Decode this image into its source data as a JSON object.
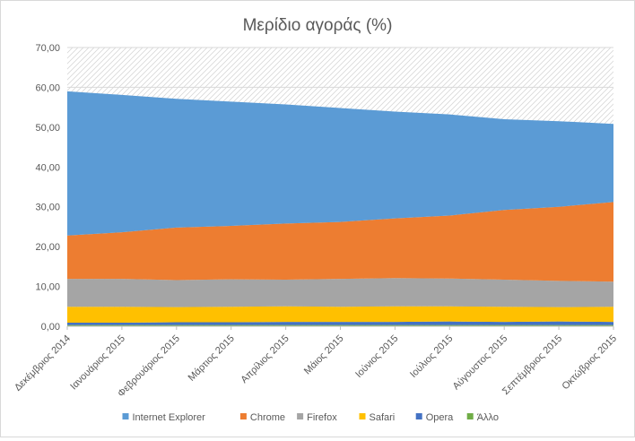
{
  "chart_data": {
    "type": "area",
    "stacked": true,
    "title": "Μερίδιο αγοράς (%)",
    "xlabel": "",
    "ylabel": "",
    "categories": [
      "Δεκέμβριος 2014",
      "Ιανουάριος 2015",
      "Φεβρουάριος 2015",
      "Μάρτιος 2015",
      "Απρίλιος 2015",
      "Μάιος 2015",
      "Ιούνιος 2015",
      "Ιούλιος 2015",
      "Αύγουστος 2015",
      "Σεπτέμβριος 2015",
      "Οκτώβριος 2015"
    ],
    "series": [
      {
        "name": "Άλλο",
        "color": "#70ad47",
        "values": [
          0.3,
          0.3,
          0.3,
          0.3,
          0.3,
          0.3,
          0.3,
          0.3,
          0.3,
          0.3,
          0.3
        ]
      },
      {
        "name": "Opera",
        "color": "#4472c4",
        "values": [
          0.6,
          0.6,
          0.7,
          0.7,
          0.8,
          0.8,
          0.8,
          0.9,
          0.8,
          0.9,
          0.8
        ]
      },
      {
        "name": "Safari",
        "color": "#ffc000",
        "values": [
          4.0,
          4.0,
          3.8,
          3.9,
          3.9,
          3.8,
          3.9,
          3.8,
          3.8,
          3.6,
          3.8
        ]
      },
      {
        "name": "Firefox",
        "color": "#a5a5a5",
        "values": [
          7.0,
          7.0,
          6.8,
          6.9,
          6.7,
          7.0,
          7.1,
          7.0,
          6.8,
          6.6,
          6.3
        ]
      },
      {
        "name": "Chrome",
        "color": "#ed7d31",
        "values": [
          10.9,
          11.7,
          13.2,
          13.4,
          14.1,
          14.3,
          15.0,
          15.8,
          17.5,
          18.6,
          20.0
        ]
      },
      {
        "name": "Internet Explorer",
        "color": "#5b9bd5",
        "values": [
          36.2,
          34.5,
          32.3,
          31.2,
          29.9,
          28.6,
          26.8,
          25.4,
          22.8,
          21.5,
          19.6
        ]
      }
    ],
    "legend_order": [
      "Internet Explorer",
      "Chrome",
      "Firefox",
      "Safari",
      "Opera",
      "Άλλο"
    ],
    "ylim": [
      0,
      70
    ],
    "yticks": [
      "0,00",
      "10,00",
      "20,00",
      "30,00",
      "40,00",
      "50,00",
      "60,00",
      "70,00"
    ],
    "ytick_values": [
      0,
      10,
      20,
      30,
      40,
      50,
      60,
      70
    ],
    "grid": true,
    "legend_position": "bottom",
    "background_above_stack": "hatched"
  }
}
